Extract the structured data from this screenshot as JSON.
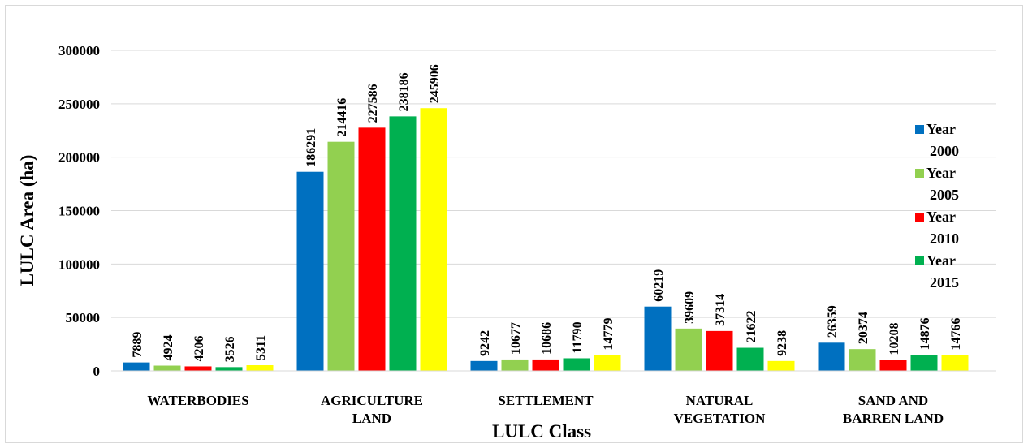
{
  "chart_data": {
    "type": "bar",
    "xlabel": "LULC Class",
    "ylabel": "LULC Area (ha)",
    "ylim": [
      0,
      300000
    ],
    "yticks": [
      0,
      50000,
      100000,
      150000,
      200000,
      250000,
      300000
    ],
    "grid": true,
    "legend": "right",
    "categories": [
      [
        "WATERBODIES"
      ],
      [
        "AGRICULTURE",
        "LAND"
      ],
      [
        "SETTLEMENT"
      ],
      [
        "NATURAL",
        "VEGETATION"
      ],
      [
        "SAND AND",
        "BARREN LAND"
      ]
    ],
    "series": [
      {
        "name": "Year 2000",
        "legend_lines": [
          "Year",
          "2000"
        ],
        "color": "#0070c0",
        "values": [
          7889,
          186291,
          9242,
          60219,
          26359
        ]
      },
      {
        "name": "Year 2005",
        "legend_lines": [
          "Year",
          "2005"
        ],
        "color": "#92d050",
        "values": [
          4924,
          214416,
          10677,
          39609,
          20374
        ]
      },
      {
        "name": "Year 2010",
        "legend_lines": [
          "Year",
          "2010"
        ],
        "color": "#ff0000",
        "values": [
          4206,
          227586,
          10686,
          37314,
          10208
        ]
      },
      {
        "name": "Year 2015",
        "legend_lines": [
          "Year",
          "2015"
        ],
        "color": "#00b050",
        "values": [
          3526,
          238186,
          11790,
          21622,
          14876
        ]
      },
      {
        "name": "",
        "color": "#ffff00",
        "values": [
          5311,
          245906,
          14779,
          9238,
          14766
        ]
      }
    ]
  }
}
